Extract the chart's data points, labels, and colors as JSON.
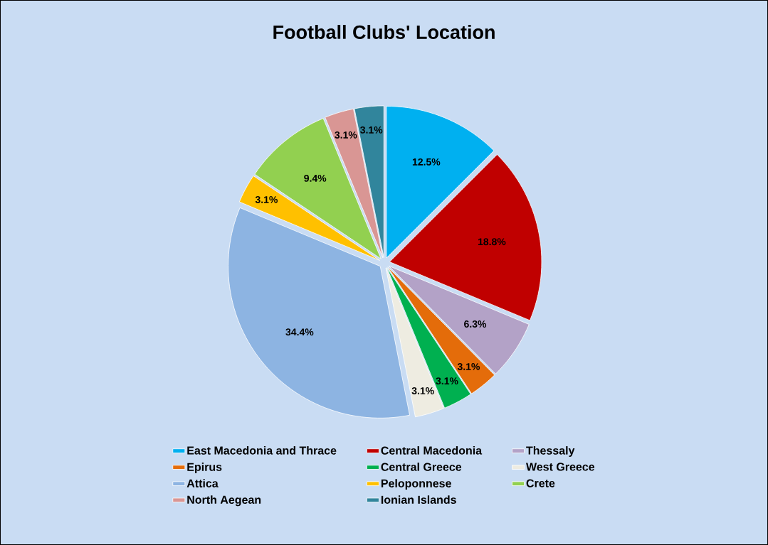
{
  "chart_data": {
    "type": "pie",
    "title": "Football Clubs' Location",
    "categories": [
      "East Macedonia and Thrace",
      "Central Macedonia",
      "Thessaly",
      "Epirus",
      "Central Greece",
      "West Greece",
      "Attica",
      "Peloponnese",
      "Crete",
      "North Aegean",
      "Ionian Islands"
    ],
    "values": [
      12.5,
      18.8,
      6.3,
      3.1,
      3.1,
      3.1,
      34.4,
      3.1,
      9.4,
      3.1,
      3.1
    ],
    "value_labels": [
      "12.5%",
      "18.8%",
      "6.3%",
      "3.1%",
      "3.1%",
      "3.1%",
      "34.4%",
      "3.1%",
      "9.4%",
      "3.1%",
      "3.1%"
    ],
    "colors": [
      "#00b0f0",
      "#c00000",
      "#b3a2c7",
      "#e46c0a",
      "#00b050",
      "#eeece1",
      "#8db4e2",
      "#ffc000",
      "#92d050",
      "#d99694",
      "#31859c"
    ],
    "legend": "bottom"
  }
}
